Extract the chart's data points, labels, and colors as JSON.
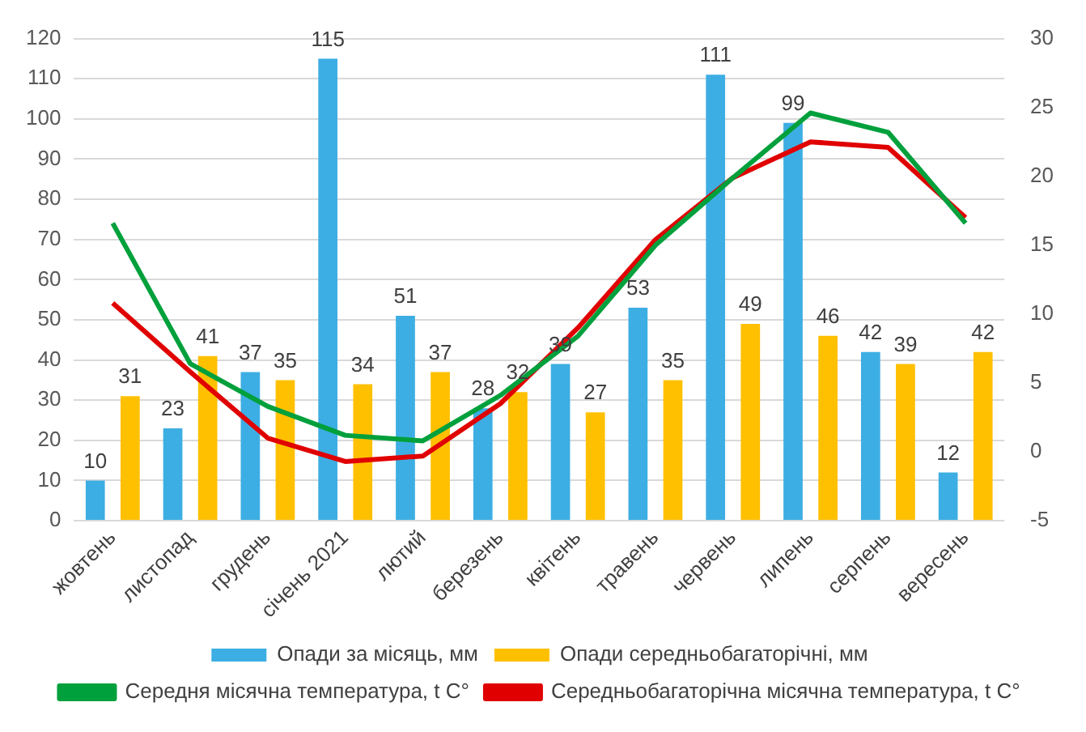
{
  "chart_data": {
    "type": "bar",
    "categories": [
      "жовтень",
      "листопад",
      "грудень",
      "січень 2021",
      "лютий",
      "березень",
      "квітень",
      "травень",
      "червень",
      "липень",
      "серпень",
      "вересень"
    ],
    "series": [
      {
        "name": "Опади за місяць, мм",
        "color": "#3daee3",
        "values": [
          10,
          23,
          37,
          115,
          51,
          28,
          39,
          53,
          111,
          99,
          42,
          12
        ],
        "value_labels": [
          "10",
          "23",
          "37",
          "115",
          "51",
          "28",
          "39",
          "53",
          "111",
          "99",
          "42",
          "12"
        ]
      },
      {
        "name": "Опади середньобагаторічні, мм",
        "color": "#ffc000",
        "values": [
          31,
          41,
          35,
          34,
          37,
          32,
          27,
          35,
          49,
          46,
          39,
          42
        ],
        "value_labels": [
          "31",
          "41",
          "35",
          "34",
          "37",
          "32",
          "27",
          "35",
          "49",
          "46",
          "39",
          "42"
        ]
      },
      {
        "name": "Середня місячна температура, t C°",
        "type": "line",
        "axis": "y2",
        "color": "#00a03c",
        "values": [
          16.6,
          6.4,
          3.3,
          1.2,
          0.8,
          4.1,
          8.4,
          15.0,
          19.9,
          24.6,
          23.2,
          16.6
        ]
      },
      {
        "name": "Середньобагаторічна місячна температура, t C°",
        "type": "line",
        "axis": "y2",
        "color": "#e00000",
        "values": [
          10.8,
          5.8,
          1.0,
          -0.7,
          -0.3,
          3.5,
          9.0,
          15.4,
          19.9,
          22.5,
          22.1,
          17.0
        ]
      }
    ],
    "ylim": [
      0,
      120
    ],
    "yticks": [
      0,
      10,
      20,
      30,
      40,
      50,
      60,
      70,
      80,
      90,
      100,
      110,
      120
    ],
    "y2lim": [
      -5,
      30
    ],
    "y2ticks": [
      -5,
      0,
      5,
      10,
      15,
      20,
      25,
      30
    ],
    "grid": "y",
    "legend": "bottom",
    "marker": "none",
    "line_style": "solid"
  }
}
